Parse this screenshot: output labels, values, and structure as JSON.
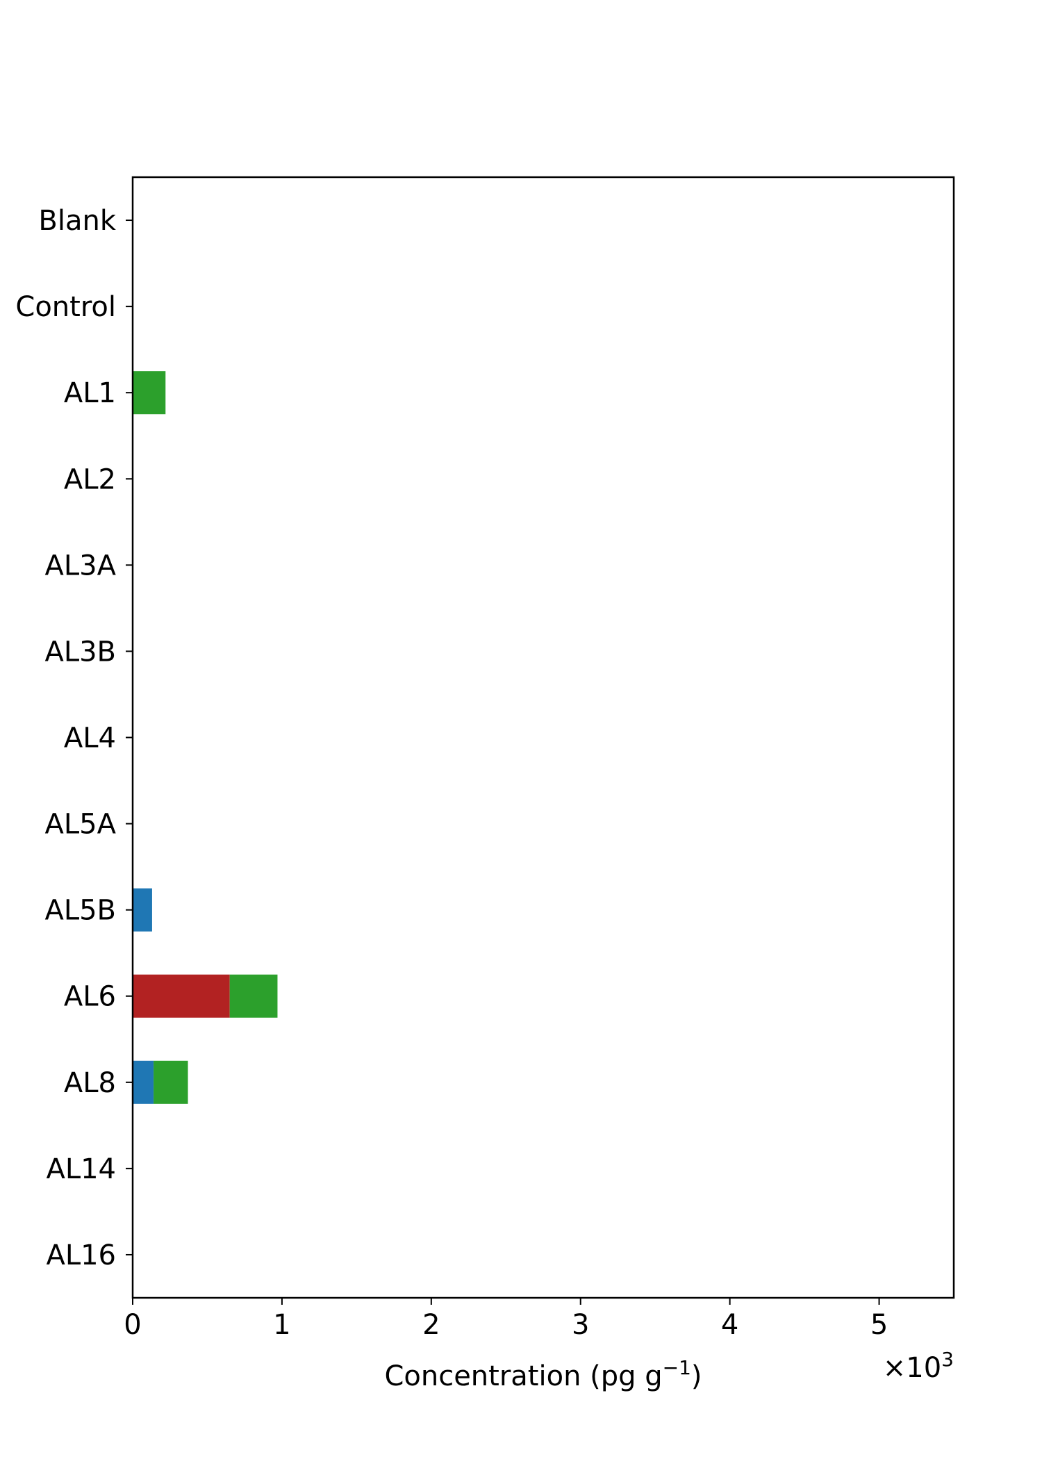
{
  "chart_data": {
    "type": "bar",
    "orientation": "horizontal",
    "stacked": true,
    "categories": [
      "Blank",
      "Control",
      "AL1",
      "AL2",
      "AL3A",
      "AL3B",
      "AL4",
      "AL5A",
      "AL5B",
      "AL6",
      "AL8",
      "AL14",
      "AL16"
    ],
    "series": [
      {
        "color": "#1f77b4",
        "values": [
          0,
          0,
          0,
          0,
          0,
          0,
          0,
          0,
          0.13,
          0,
          0.14,
          0,
          0
        ]
      },
      {
        "color": "#b22222",
        "values": [
          0,
          0,
          0,
          0,
          0,
          0,
          0,
          0,
          0,
          0.65,
          0,
          0,
          0
        ]
      },
      {
        "color": "#2ca02c",
        "values": [
          0,
          0,
          0.22,
          0,
          0,
          0,
          0,
          0,
          0,
          0.32,
          0.23,
          0,
          0
        ]
      }
    ],
    "xlabel": {
      "prefix": "Concentration (pg g",
      "superscript": "−1",
      "suffix": ")"
    },
    "x_multiplier": {
      "base": "×10",
      "exponent": "3"
    },
    "xlim": [
      0,
      5.5
    ],
    "xticks": [
      0,
      1,
      2,
      3,
      4,
      5
    ],
    "xtick_labels": [
      "0",
      "1",
      "2",
      "3",
      "4",
      "5"
    ],
    "grid": false,
    "legend": false
  }
}
